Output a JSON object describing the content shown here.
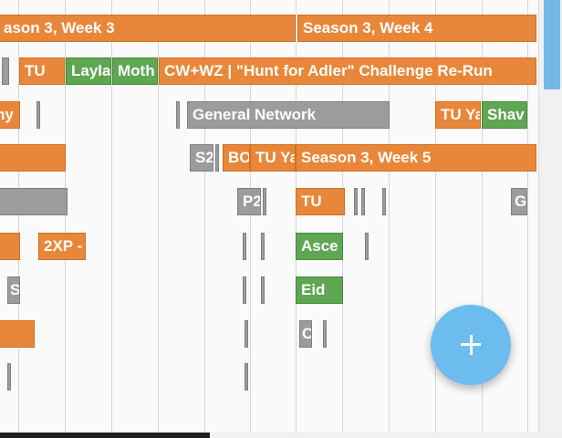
{
  "timeline": {
    "weeks": {
      "season3_week3": "ason 3, Week 3",
      "season3_week4": "Season 3, Week 4",
      "season3_week5": "Season 3, Week 5"
    },
    "events": {
      "tu_row2": "TU",
      "layla": "Layla",
      "moth": "Moth",
      "hunt_for_adler": "CW+WZ | \"Hunt for Adler\" Challenge Re-Run",
      "ny": "ny",
      "general_network": "General Network",
      "tu_ya_row3": "TU Ya",
      "shav": "Shav",
      "s2_row4": "S2",
      "bo": "BO",
      "tu_ya_row4": "TU Ya",
      "p2": "P2",
      "tu_row5": "TU",
      "g_row5": "G",
      "twoxp": "2XP -",
      "asce": "Asce",
      "s_row7": "S",
      "eid": "Eid",
      "c_row8": "C"
    }
  },
  "fab": {
    "icon": "plus-icon"
  },
  "colors": {
    "orange": "#e8873a",
    "green": "#5fa653",
    "gray": "#9c9c9c",
    "fab": "#6cbcee"
  }
}
